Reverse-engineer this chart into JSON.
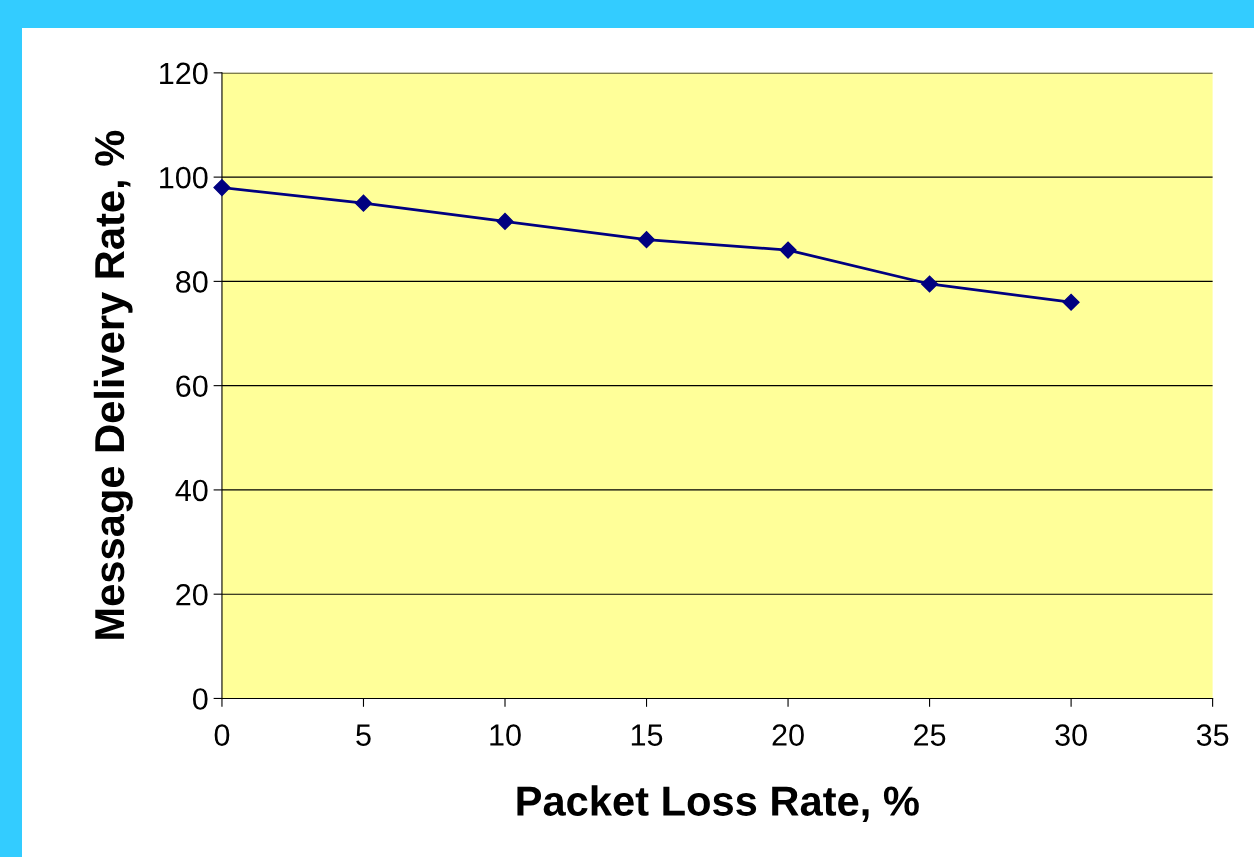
{
  "chart_data": {
    "type": "line",
    "xlabel": "Packet Loss Rate, %",
    "ylabel": "Message Delivery Rate, %",
    "x": [
      0,
      5,
      10,
      15,
      20,
      25,
      30
    ],
    "series": [
      {
        "color": "#000080",
        "values": [
          98,
          95,
          91.5,
          88,
          86,
          79.5,
          76
        ]
      }
    ],
    "xlim": [
      0,
      35
    ],
    "xticks": [
      0,
      5,
      10,
      15,
      20,
      25,
      30,
      35
    ],
    "ylim": [
      0,
      120
    ],
    "yticks": [
      0,
      20,
      40,
      60,
      80,
      100,
      120
    ],
    "grid": "y",
    "marker": "diamond",
    "line_style": "solid"
  }
}
